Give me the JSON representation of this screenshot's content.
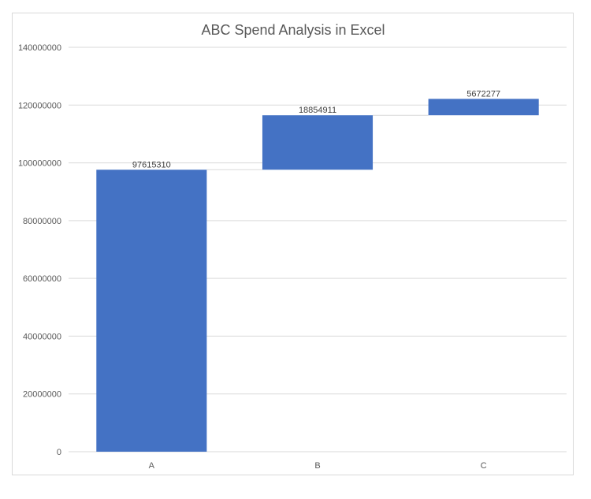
{
  "chart_data": {
    "type": "bar",
    "subtype": "waterfall",
    "title": "ABC Spend Analysis in Excel",
    "xlabel": "",
    "ylabel": "",
    "categories": [
      "A",
      "B",
      "C"
    ],
    "values": [
      97615310,
      18854911,
      5672277
    ],
    "ylim": [
      0,
      140000000
    ],
    "yticks": [
      "0",
      "20000000",
      "40000000",
      "60000000",
      "80000000",
      "100000000",
      "120000000",
      "140000000"
    ],
    "grid": true,
    "legend": "none",
    "bar_color": "#4472C4",
    "connector_color": "#d9d9d9"
  }
}
